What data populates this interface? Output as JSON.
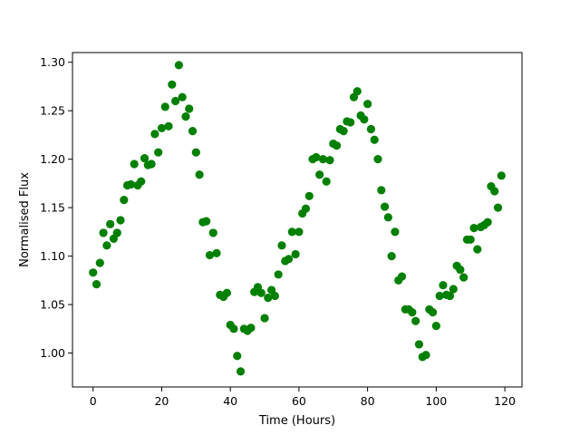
{
  "chart_data": {
    "type": "scatter",
    "title": "",
    "xlabel": "Time (Hours)",
    "ylabel": "Normalised Flux",
    "xlim": [
      -6,
      125
    ],
    "ylim": [
      0.965,
      1.31
    ],
    "xticks": [
      0,
      20,
      40,
      60,
      80,
      100,
      120
    ],
    "xtick_labels": [
      "0",
      "20",
      "40",
      "60",
      "80",
      "100",
      "120"
    ],
    "yticks": [
      1.0,
      1.05,
      1.1,
      1.15,
      1.2,
      1.25,
      1.3
    ],
    "ytick_labels": [
      "1.00",
      "1.05",
      "1.10",
      "1.15",
      "1.20",
      "1.25",
      "1.30"
    ],
    "grid": false,
    "legend": "none",
    "marker_color": "#008000",
    "series": [
      {
        "x": [
          0,
          1,
          2,
          3,
          4,
          5,
          6,
          7,
          8,
          9,
          10,
          11,
          12,
          13,
          14,
          15,
          16,
          17,
          18,
          19,
          20,
          21,
          22,
          23,
          24,
          25,
          26,
          27,
          28,
          29,
          30,
          31,
          32,
          33,
          34,
          35,
          36,
          37,
          38,
          39,
          40,
          41,
          42,
          43,
          44,
          45,
          46,
          47,
          48,
          49,
          50,
          51,
          52,
          53,
          54,
          55,
          56,
          57,
          58,
          59,
          60,
          61,
          62,
          63,
          64,
          65,
          66,
          67,
          68,
          69,
          70,
          71,
          72,
          73,
          74,
          75,
          76,
          77,
          78,
          79,
          80,
          81,
          82,
          83,
          84,
          85,
          86,
          87,
          88,
          89,
          90,
          91,
          92,
          93,
          94,
          95,
          96,
          97,
          98,
          99,
          100,
          101,
          102,
          103,
          104,
          105,
          106,
          107,
          108,
          109,
          110,
          111,
          112,
          113,
          114,
          115,
          116,
          117,
          118,
          119
        ],
        "y": [
          1.083,
          1.071,
          1.093,
          1.124,
          1.111,
          1.133,
          1.118,
          1.124,
          1.137,
          1.158,
          1.173,
          1.174,
          1.195,
          1.173,
          1.177,
          1.201,
          1.194,
          1.195,
          1.226,
          1.207,
          1.232,
          1.254,
          1.234,
          1.277,
          1.26,
          1.297,
          1.264,
          1.244,
          1.252,
          1.229,
          1.207,
          1.184,
          1.135,
          1.136,
          1.101,
          1.124,
          1.103,
          1.06,
          1.058,
          1.062,
          1.029,
          1.025,
          0.997,
          0.981,
          1.025,
          1.023,
          1.026,
          1.063,
          1.068,
          1.062,
          1.036,
          1.057,
          1.065,
          1.059,
          1.081,
          1.111,
          1.095,
          1.097,
          1.125,
          1.102,
          1.125,
          1.144,
          1.149,
          1.162,
          1.2,
          1.202,
          1.184,
          1.2,
          1.177,
          1.199,
          1.216,
          1.214,
          1.231,
          1.229,
          1.239,
          1.238,
          1.264,
          1.27,
          1.245,
          1.241,
          1.257,
          1.231,
          1.22,
          1.2,
          1.168,
          1.151,
          1.14,
          1.1,
          1.125,
          1.075,
          1.079,
          1.045,
          1.045,
          1.042,
          1.033,
          1.009,
          0.996,
          0.998,
          1.045,
          1.042,
          1.028,
          1.059,
          1.07,
          1.06,
          1.059,
          1.066,
          1.09,
          1.086,
          1.078,
          1.117,
          1.117,
          1.129,
          1.107,
          1.13,
          1.132,
          1.135,
          1.172,
          1.167,
          1.15,
          1.183
        ]
      }
    ]
  }
}
